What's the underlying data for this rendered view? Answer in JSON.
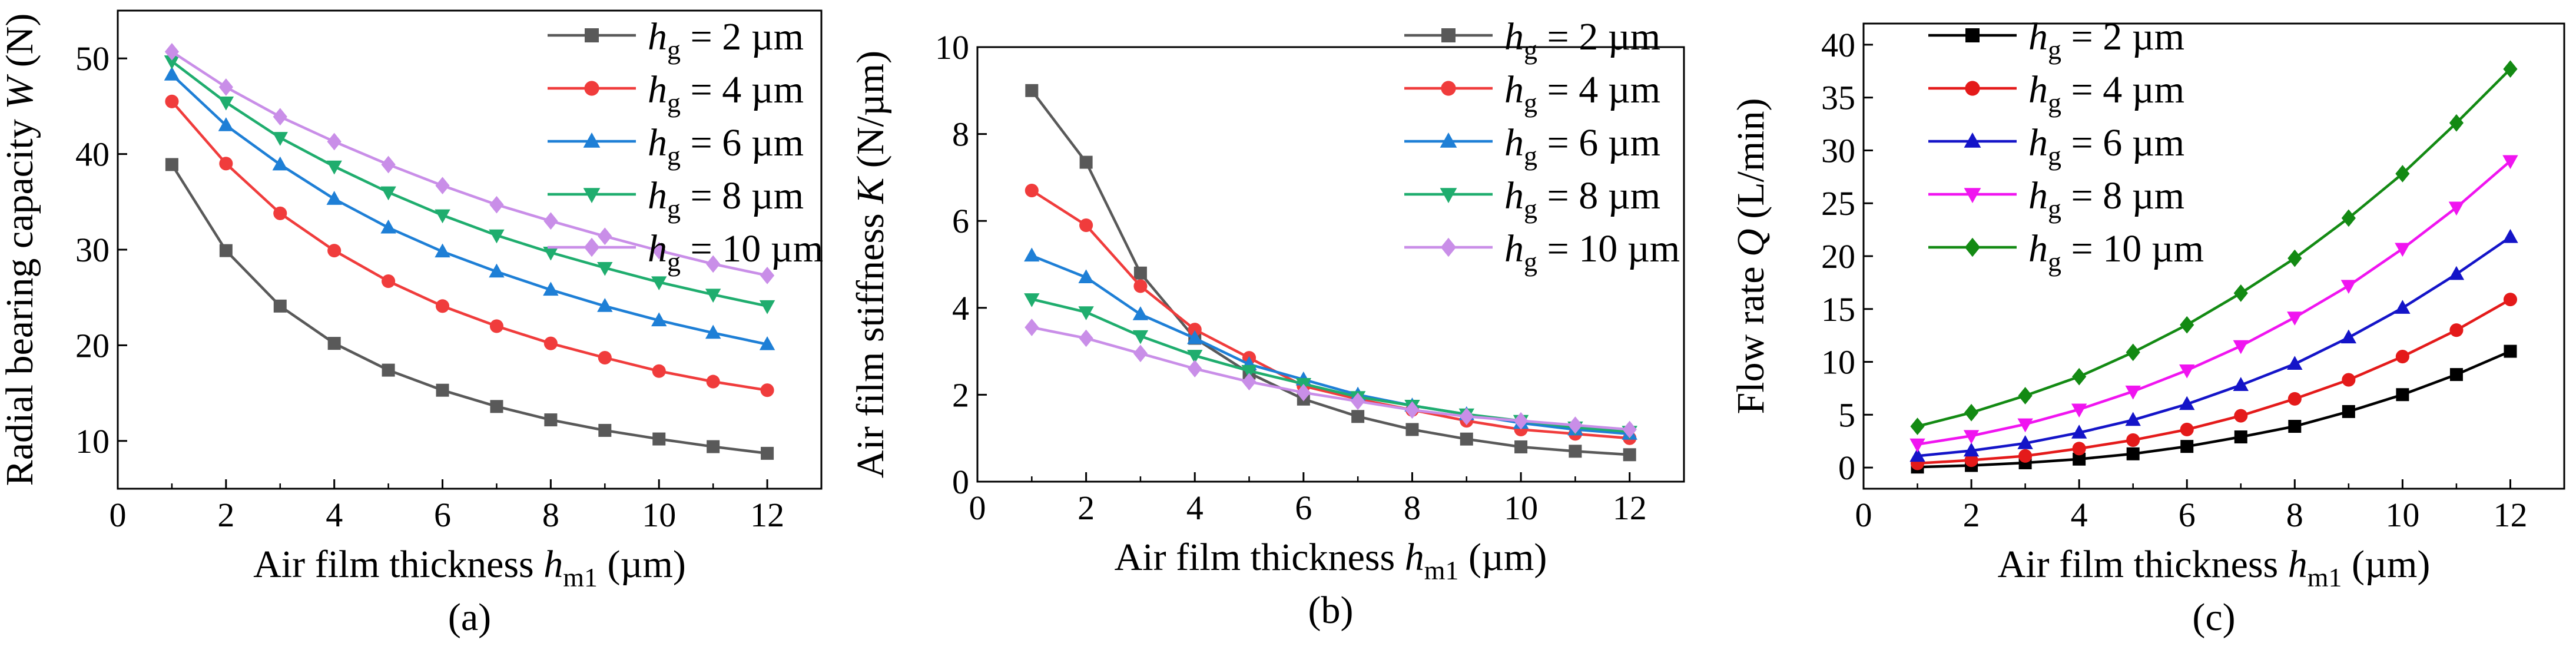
{
  "figure": {
    "panels": [
      "(a)",
      "(b)",
      "(c)"
    ]
  },
  "chart_data": [
    {
      "type": "line",
      "panel_label": "(a)",
      "xlabel": {
        "pre": "Air film thickness ",
        "var": "h",
        "sub": "m1",
        "post": " (µm)"
      },
      "ylabel": {
        "pre": "Radial bearing capacity ",
        "var": "W",
        "post": " (N)"
      },
      "xlim": [
        0,
        13
      ],
      "ylim": [
        5,
        55
      ],
      "xticks": [
        0,
        2,
        4,
        6,
        8,
        10,
        12
      ],
      "yticks": [
        10,
        20,
        30,
        40,
        50
      ],
      "legend_position": "top-right",
      "x": [
        1,
        2,
        3,
        4,
        5,
        6,
        7,
        8,
        9,
        10,
        11,
        12
      ],
      "series": [
        {
          "name": "hg = 2 µm",
          "sub": "g",
          "value_text": " = 2 µm",
          "color": "#595959",
          "marker": "square",
          "values": [
            38.9,
            29.9,
            24.1,
            20.2,
            17.4,
            15.3,
            13.6,
            12.2,
            11.1,
            10.2,
            9.4,
            8.7
          ]
        },
        {
          "name": "hg = 4 µm",
          "sub": "g",
          "value_text": " = 4 µm",
          "color": "#f03c3c",
          "marker": "circle",
          "values": [
            45.5,
            39.0,
            33.8,
            29.9,
            26.7,
            24.1,
            22.0,
            20.2,
            18.7,
            17.3,
            16.2,
            15.3
          ]
        },
        {
          "name": "hg = 6 µm",
          "sub": "g",
          "value_text": " = 6 µm",
          "color": "#1e7fd6",
          "marker": "triangle-up",
          "values": [
            48.3,
            43.0,
            38.9,
            35.3,
            32.3,
            29.8,
            27.7,
            25.8,
            24.1,
            22.6,
            21.3,
            20.1
          ]
        },
        {
          "name": "hg = 8 µm",
          "sub": "g",
          "value_text": " = 8 µm",
          "color": "#1fad6e",
          "marker": "triangle-down",
          "values": [
            49.7,
            45.4,
            41.7,
            38.7,
            36.0,
            33.6,
            31.5,
            29.7,
            28.1,
            26.6,
            25.3,
            24.1
          ]
        },
        {
          "name": "hg = 10 µm",
          "sub": "g",
          "value_text": " = 10 µm",
          "color": "#c98ee8",
          "marker": "diamond",
          "values": [
            50.7,
            47.0,
            43.9,
            41.3,
            38.9,
            36.7,
            34.7,
            33.0,
            31.4,
            29.9,
            28.5,
            27.3
          ]
        }
      ]
    },
    {
      "type": "line",
      "panel_label": "(b)",
      "xlabel": {
        "pre": "Air film thickness ",
        "var": "h",
        "sub": "m1",
        "post": " (µm)"
      },
      "ylabel": {
        "pre": "Air film stiffness ",
        "var": "K",
        "post": " (N/µm)"
      },
      "xlim": [
        0,
        13
      ],
      "ylim": [
        0,
        10
      ],
      "xticks": [
        0,
        2,
        4,
        6,
        8,
        10,
        12
      ],
      "yticks": [
        0,
        2,
        4,
        6,
        8,
        10
      ],
      "legend_position": "top-right",
      "x": [
        1,
        2,
        3,
        4,
        5,
        6,
        7,
        8,
        9,
        10,
        11,
        12
      ],
      "series": [
        {
          "name": "hg = 2 µm",
          "sub": "g",
          "value_text": " = 2 µm",
          "color": "#595959",
          "marker": "square",
          "values": [
            9.0,
            7.35,
            4.8,
            3.3,
            2.5,
            1.9,
            1.5,
            1.2,
            0.98,
            0.8,
            0.7,
            0.62
          ]
        },
        {
          "name": "hg = 4 µm",
          "sub": "g",
          "value_text": " = 4 µm",
          "color": "#f03c3c",
          "marker": "circle",
          "values": [
            6.7,
            5.9,
            4.5,
            3.5,
            2.85,
            2.2,
            1.9,
            1.65,
            1.4,
            1.2,
            1.1,
            1.0
          ]
        },
        {
          "name": "hg = 6 µm",
          "sub": "g",
          "value_text": " = 6 µm",
          "color": "#1e7fd6",
          "marker": "triangle-up",
          "values": [
            5.2,
            4.7,
            3.85,
            3.3,
            2.7,
            2.35,
            2.0,
            1.75,
            1.55,
            1.35,
            1.2,
            1.1
          ]
        },
        {
          "name": "hg = 8 µm",
          "sub": "g",
          "value_text": " = 8 µm",
          "color": "#1fad6e",
          "marker": "triangle-down",
          "values": [
            4.2,
            3.9,
            3.35,
            2.9,
            2.55,
            2.25,
            1.95,
            1.75,
            1.55,
            1.4,
            1.25,
            1.15
          ]
        },
        {
          "name": "hg = 10 µm",
          "sub": "g",
          "value_text": " = 10 µm",
          "color": "#c98ee8",
          "marker": "diamond",
          "values": [
            3.55,
            3.3,
            2.95,
            2.6,
            2.3,
            2.05,
            1.85,
            1.65,
            1.5,
            1.4,
            1.3,
            1.2
          ]
        }
      ]
    },
    {
      "type": "line",
      "panel_label": "(c)",
      "xlabel": {
        "pre": "Air film thickness ",
        "var": "h",
        "sub": "m1",
        "post": " (µm)"
      },
      "ylabel": {
        "pre": "Flow rate ",
        "var": "Q",
        "post": " (L/min)"
      },
      "xlim": [
        0,
        13
      ],
      "ylim": [
        -2,
        42
      ],
      "xticks": [
        0,
        2,
        4,
        6,
        8,
        10,
        12
      ],
      "yticks": [
        0,
        5,
        10,
        15,
        20,
        25,
        30,
        35,
        40
      ],
      "legend_position": "top-left",
      "x": [
        1,
        2,
        3,
        4,
        5,
        6,
        7,
        8,
        9,
        10,
        11,
        12
      ],
      "series": [
        {
          "name": "hg = 2 µm",
          "sub": "g",
          "value_text": " = 2 µm",
          "color": "#000000",
          "marker": "square",
          "values": [
            0.05,
            0.2,
            0.45,
            0.8,
            1.3,
            2.0,
            2.9,
            3.9,
            5.3,
            6.9,
            8.8,
            11.0
          ]
        },
        {
          "name": "hg = 4 µm",
          "sub": "g",
          "value_text": " = 4 µm",
          "color": "#e41a1a",
          "marker": "circle",
          "values": [
            0.4,
            0.7,
            1.1,
            1.8,
            2.6,
            3.6,
            4.9,
            6.5,
            8.3,
            10.5,
            13.0,
            15.9
          ]
        },
        {
          "name": "hg = 6 µm",
          "sub": "g",
          "value_text": " = 6 µm",
          "color": "#1414c8",
          "marker": "triangle-up",
          "values": [
            1.1,
            1.6,
            2.3,
            3.3,
            4.5,
            6.0,
            7.8,
            9.8,
            12.3,
            15.1,
            18.3,
            21.8
          ]
        },
        {
          "name": "hg = 8 µm",
          "sub": "g",
          "value_text": " = 8 µm",
          "color": "#f014f0",
          "marker": "triangle-down",
          "values": [
            2.2,
            3.0,
            4.1,
            5.5,
            7.2,
            9.2,
            11.5,
            14.2,
            17.2,
            20.7,
            24.6,
            29.0
          ]
        },
        {
          "name": "hg = 10 µm",
          "sub": "g",
          "value_text": " = 10 µm",
          "color": "#138a13",
          "marker": "diamond",
          "values": [
            3.9,
            5.2,
            6.8,
            8.6,
            10.9,
            13.5,
            16.5,
            19.8,
            23.6,
            27.8,
            32.6,
            37.7
          ]
        }
      ]
    }
  ]
}
